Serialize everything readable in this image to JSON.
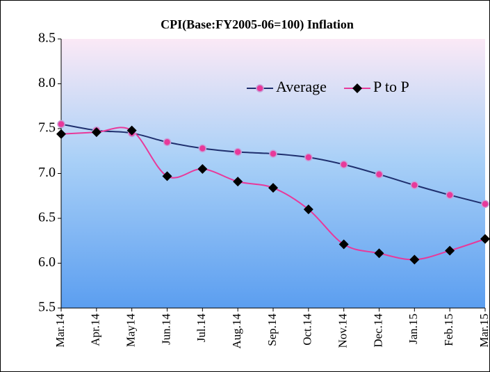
{
  "chart_data": {
    "type": "line",
    "title": "CPI(Base:FY2005-06=100) Inflation",
    "categories": [
      "Mar.14",
      "Apr.14",
      "May14",
      "Jun.14",
      "Jul.14",
      "Aug.14",
      "Sep.14",
      "Oct.14",
      "Nov.14",
      "Dec.14",
      "Jan.15",
      "Feb.15",
      "Mar.15"
    ],
    "series": [
      {
        "name": "Average",
        "color": "#1f2f6e",
        "marker": "circle",
        "marker_color": "#e8399a",
        "values": [
          7.55,
          7.48,
          7.45,
          7.35,
          7.28,
          7.24,
          7.22,
          7.18,
          7.1,
          6.99,
          6.87,
          6.76,
          6.66
        ]
      },
      {
        "name": "P to P",
        "color": "#e8399a",
        "marker": "diamond",
        "marker_color": "#000000",
        "values": [
          7.44,
          7.46,
          7.48,
          6.97,
          7.05,
          6.91,
          6.84,
          6.6,
          6.21,
          6.11,
          6.04,
          6.14,
          6.27
        ]
      }
    ],
    "ylim": [
      5.5,
      8.5
    ],
    "yticks": [
      5.5,
      {
        "value": 6,
        "label": "6.0"
      },
      6.5,
      {
        "value": 7,
        "label": "7.0"
      },
      7.5,
      {
        "value": 8,
        "label": "8.0"
      },
      8.5
    ],
    "legend": "top-right"
  }
}
